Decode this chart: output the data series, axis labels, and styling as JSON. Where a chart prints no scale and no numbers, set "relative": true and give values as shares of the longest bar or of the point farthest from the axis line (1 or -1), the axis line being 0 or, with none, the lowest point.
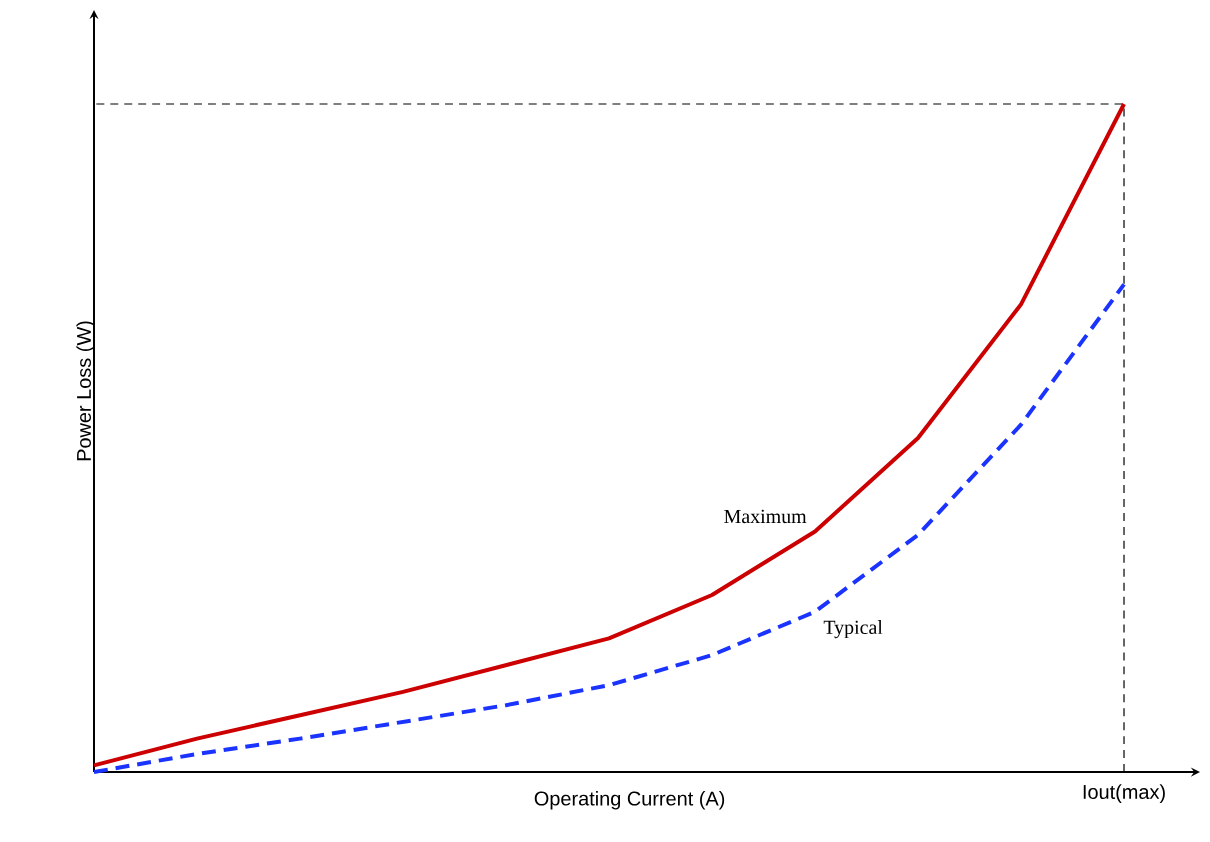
{
  "chart_data": {
    "type": "line",
    "relative": true,
    "xlabel": "Operating Current (A)",
    "ylabel": "Power Loss (W)",
    "categories": [
      null,
      null,
      null,
      null,
      null,
      null,
      null,
      null,
      null,
      null,
      null
    ],
    "series": [
      {
        "name": "Maximum",
        "color": "#cc0000",
        "line_style": "solid",
        "values": [
          0.01,
          0.05,
          0.085,
          0.12,
          0.16,
          0.2,
          0.265,
          0.36,
          0.5,
          0.7,
          1.0
        ]
      },
      {
        "name": "Typical",
        "color": "#1a33ff",
        "line_style": "dashed",
        "values": [
          0,
          0.027,
          0.05,
          0.075,
          0.1,
          0.13,
          0.175,
          0.24,
          0.355,
          0.52,
          0.73
        ]
      }
    ],
    "annotations": [
      "Iout(max)"
    ],
    "legend": false,
    "marker": "none"
  }
}
